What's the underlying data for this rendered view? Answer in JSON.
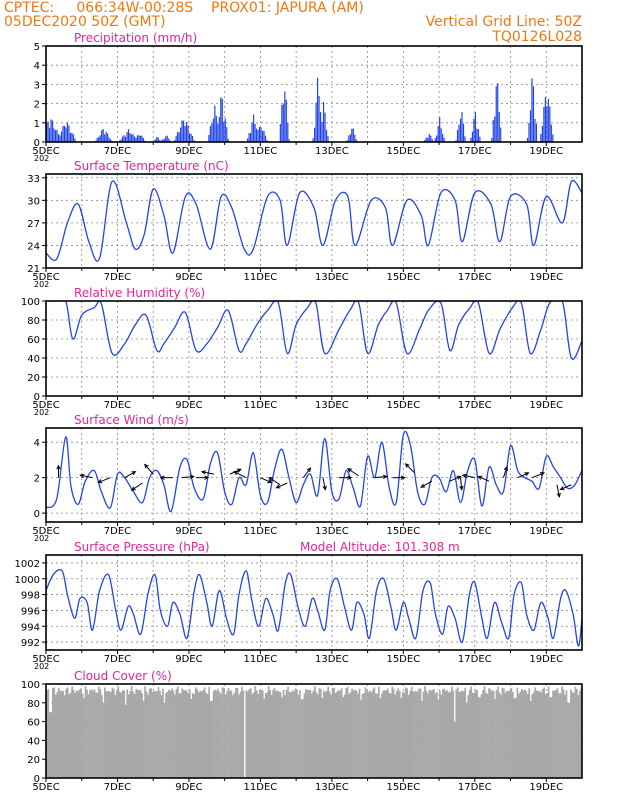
{
  "header": {
    "line1_left": "CPTEC:",
    "line1_coords": "066:34W-00:28S",
    "line1_station": "PROX01: JAPURA (AM)",
    "line2_left": "05DEC2020 50Z (GMT)",
    "line2_right": "Vertical Grid Line: 50Z",
    "line3_right": "TQ0126L028"
  },
  "colors": {
    "header": "#ee7711",
    "panel_title": "#e0249a",
    "series": "#2345e8",
    "cloud": "#a8a8a8",
    "grid": "#888888"
  },
  "x_axis": {
    "tick_labels": [
      "5DEC",
      "7DEC",
      "9DEC",
      "11DEC",
      "13DEC",
      "15DEC",
      "17DEC",
      "19DEC"
    ],
    "tick_days": [
      0,
      2,
      4,
      6,
      8,
      10,
      12,
      14
    ],
    "year_fragment": "202"
  },
  "chart_data": [
    {
      "id": "precip",
      "type": "bar",
      "title": "Precipitation (mm/h)",
      "ylim": [
        0,
        5
      ],
      "yticks": [
        0,
        1,
        2,
        3,
        4,
        5
      ],
      "grid": true,
      "x_range_days": [
        0,
        15
      ],
      "bursts": [
        {
          "day": 0.1,
          "peak": 1.4,
          "width": 0.35
        },
        {
          "day": 0.55,
          "peak": 1.2,
          "width": 0.3
        },
        {
          "day": 1.6,
          "peak": 0.8,
          "width": 0.25
        },
        {
          "day": 2.3,
          "peak": 0.7,
          "width": 0.3
        },
        {
          "day": 2.6,
          "peak": 0.5,
          "width": 0.2
        },
        {
          "day": 3.1,
          "peak": 0.3,
          "width": 0.15
        },
        {
          "day": 3.35,
          "peak": 0.4,
          "width": 0.15
        },
        {
          "day": 3.85,
          "peak": 1.4,
          "width": 0.3
        },
        {
          "day": 4.7,
          "peak": 2.0,
          "width": 0.2
        },
        {
          "day": 4.9,
          "peak": 2.7,
          "width": 0.2
        },
        {
          "day": 5.8,
          "peak": 1.5,
          "width": 0.2
        },
        {
          "day": 6.0,
          "peak": 1.0,
          "width": 0.2
        },
        {
          "day": 6.65,
          "peak": 3.6,
          "width": 0.15
        },
        {
          "day": 7.6,
          "peak": 3.8,
          "width": 0.15
        },
        {
          "day": 7.75,
          "peak": 2.2,
          "width": 0.15
        },
        {
          "day": 8.55,
          "peak": 0.9,
          "width": 0.15
        },
        {
          "day": 10.7,
          "peak": 0.5,
          "width": 0.15
        },
        {
          "day": 11.0,
          "peak": 1.3,
          "width": 0.15
        },
        {
          "day": 11.6,
          "peak": 1.9,
          "width": 0.15
        },
        {
          "day": 12.0,
          "peak": 1.7,
          "width": 0.15
        },
        {
          "day": 12.6,
          "peak": 3.7,
          "width": 0.15
        },
        {
          "day": 13.6,
          "peak": 3.8,
          "width": 0.15
        },
        {
          "day": 14.0,
          "peak": 3.2,
          "width": 0.2
        }
      ]
    },
    {
      "id": "temp",
      "type": "line",
      "title": "Surface Temperature (nC)",
      "ylim": [
        21,
        33.5
      ],
      "yticks": [
        21,
        24,
        27,
        30,
        33
      ],
      "grid": true,
      "x_days": [
        0,
        0.3,
        0.6,
        0.9,
        1.2,
        1.5,
        1.85,
        2.25,
        2.5,
        2.75,
        3.0,
        3.3,
        3.55,
        3.9,
        4.2,
        4.6,
        4.9,
        5.2,
        5.55,
        5.8,
        6.2,
        6.55,
        6.75,
        7.1,
        7.5,
        7.75,
        8.1,
        8.45,
        8.65,
        9.1,
        9.5,
        9.7,
        10.1,
        10.5,
        10.7,
        11.05,
        11.45,
        11.65,
        12.0,
        12.45,
        12.7,
        13.0,
        13.45,
        13.65,
        14.0,
        14.45,
        14.7,
        15.0
      ],
      "values": [
        23.0,
        22.2,
        27.0,
        29.5,
        24.5,
        22.3,
        32.5,
        27.0,
        23.5,
        25.5,
        31.5,
        28.0,
        23.0,
        30.5,
        29.5,
        23.5,
        30.5,
        29.0,
        23.5,
        23.5,
        30.5,
        30.0,
        24.0,
        31.0,
        29.0,
        24.0,
        30.0,
        30.5,
        24.0,
        30.0,
        29.0,
        24.0,
        30.0,
        28.0,
        24.0,
        31.0,
        30.0,
        24.5,
        31.0,
        29.5,
        24.5,
        30.5,
        29.5,
        24.0,
        30.5,
        27.0,
        32.5,
        31.0
      ]
    },
    {
      "id": "rh",
      "type": "line",
      "title": "Relative Humidity (%)",
      "ylim": [
        0,
        100
      ],
      "yticks": [
        0,
        20,
        40,
        60,
        80,
        100
      ],
      "grid": true,
      "x_days": [
        0,
        0.25,
        0.55,
        0.75,
        1.0,
        1.35,
        1.55,
        1.85,
        2.2,
        2.5,
        2.8,
        3.1,
        3.3,
        3.6,
        3.9,
        4.2,
        4.5,
        4.8,
        5.1,
        5.4,
        5.6,
        5.9,
        6.2,
        6.5,
        6.75,
        7.0,
        7.3,
        7.55,
        7.8,
        8.2,
        8.5,
        8.75,
        9.0,
        9.3,
        9.55,
        9.8,
        10.1,
        10.45,
        10.7,
        11.05,
        11.3,
        11.55,
        11.85,
        12.1,
        12.4,
        12.7,
        13.0,
        13.3,
        13.55,
        13.85,
        14.1,
        14.45,
        14.7,
        15.0
      ],
      "values": [
        100,
        100,
        100,
        60,
        85,
        93,
        97,
        45,
        55,
        75,
        85,
        48,
        55,
        72,
        88,
        48,
        55,
        72,
        90,
        48,
        55,
        75,
        90,
        98,
        45,
        75,
        92,
        98,
        45,
        70,
        90,
        98,
        45,
        75,
        90,
        98,
        45,
        70,
        90,
        98,
        48,
        75,
        92,
        98,
        45,
        70,
        90,
        98,
        45,
        70,
        98,
        100,
        40,
        58
      ]
    },
    {
      "id": "wind",
      "type": "line",
      "title": "Surface Wind (m/s)",
      "ylim": [
        -0.5,
        4.8
      ],
      "yticks": [
        0,
        2,
        4
      ],
      "grid": true,
      "x_days": [
        0,
        0.3,
        0.55,
        0.7,
        0.9,
        1.1,
        1.35,
        1.55,
        1.8,
        2.0,
        2.2,
        2.45,
        2.7,
        2.9,
        3.1,
        3.3,
        3.5,
        3.75,
        3.95,
        4.15,
        4.4,
        4.6,
        4.8,
        5.0,
        5.2,
        5.4,
        5.6,
        5.8,
        6.0,
        6.2,
        6.4,
        6.6,
        6.8,
        7.0,
        7.2,
        7.4,
        7.6,
        7.8,
        8.0,
        8.2,
        8.4,
        8.6,
        8.8,
        9.0,
        9.2,
        9.4,
        9.6,
        9.8,
        10.0,
        10.2,
        10.4,
        10.6,
        10.8,
        11.0,
        11.2,
        11.4,
        11.6,
        11.8,
        12.0,
        12.2,
        12.4,
        12.6,
        12.8,
        13.0,
        13.2,
        13.4,
        13.6,
        13.8,
        14.0,
        14.2,
        14.4,
        14.6,
        14.8,
        15.0
      ],
      "values": [
        0.3,
        0.8,
        4.3,
        1.5,
        0.5,
        1.8,
        2.4,
        1.2,
        0.3,
        2.2,
        2.0,
        1.2,
        0.6,
        2.0,
        2.4,
        1.6,
        0.1,
        2.6,
        3.0,
        1.4,
        0.8,
        2.8,
        3.4,
        1.2,
        0.5,
        2.0,
        1.6,
        3.4,
        1.0,
        0.6,
        2.5,
        3.6,
        2.0,
        0.6,
        1.6,
        2.2,
        1.0,
        4.2,
        1.2,
        0.8,
        2.4,
        1.4,
        0.4,
        3.2,
        2.0,
        4.0,
        1.5,
        0.6,
        4.4,
        3.8,
        1.2,
        0.5,
        2.0,
        2.0,
        1.2,
        2.4,
        0.6,
        2.4,
        3.0,
        0.4,
        2.6,
        1.6,
        1.2,
        3.8,
        2.4,
        2.0,
        1.8,
        1.4,
        3.2,
        2.6,
        2.0,
        1.4,
        1.6,
        2.4
      ],
      "arrows": [
        {
          "day": 0.35,
          "y": 2.0,
          "dx": 0.0,
          "dy": 1.0
        },
        {
          "day": 1.3,
          "y": 2.0,
          "dx": -1.0,
          "dy": 0.2
        },
        {
          "day": 1.8,
          "y": 2.0,
          "dx": -1.0,
          "dy": -0.4
        },
        {
          "day": 2.2,
          "y": 2.0,
          "dx": 0.9,
          "dy": 0.5
        },
        {
          "day": 2.7,
          "y": 1.7,
          "dx": -0.9,
          "dy": -0.6
        },
        {
          "day": 3.0,
          "y": 2.2,
          "dx": -0.7,
          "dy": 0.8
        },
        {
          "day": 3.55,
          "y": 2.0,
          "dx": -1.0,
          "dy": 0.0
        },
        {
          "day": 3.8,
          "y": 2.0,
          "dx": 1.0,
          "dy": 0.1
        },
        {
          "day": 4.2,
          "y": 2.0,
          "dx": 1.0,
          "dy": 0.0
        },
        {
          "day": 4.7,
          "y": 2.2,
          "dx": -1.0,
          "dy": 0.2
        },
        {
          "day": 5.15,
          "y": 2.2,
          "dx": 0.9,
          "dy": 0.4
        },
        {
          "day": 5.6,
          "y": 2.0,
          "dx": -1.0,
          "dy": 0.5
        },
        {
          "day": 6.0,
          "y": 2.0,
          "dx": 0.9,
          "dy": -0.4
        },
        {
          "day": 6.55,
          "y": 1.6,
          "dx": -0.9,
          "dy": 0.6
        },
        {
          "day": 6.75,
          "y": 1.7,
          "dx": -0.9,
          "dy": -0.4
        },
        {
          "day": 7.2,
          "y": 2.0,
          "dx": 0.6,
          "dy": 0.8
        },
        {
          "day": 7.75,
          "y": 2.0,
          "dx": 0.2,
          "dy": -1.0
        },
        {
          "day": 8.2,
          "y": 2.0,
          "dx": 1.0,
          "dy": 0.0
        },
        {
          "day": 8.75,
          "y": 2.1,
          "dx": -0.9,
          "dy": 0.6
        },
        {
          "day": 9.2,
          "y": 2.0,
          "dx": 1.0,
          "dy": 0.1
        },
        {
          "day": 9.7,
          "y": 2.0,
          "dx": 1.0,
          "dy": 0.0
        },
        {
          "day": 10.3,
          "y": 2.3,
          "dx": -0.7,
          "dy": 0.7
        },
        {
          "day": 10.8,
          "y": 1.8,
          "dx": -0.9,
          "dy": -0.5
        },
        {
          "day": 11.3,
          "y": 1.8,
          "dx": 0.9,
          "dy": 0.4
        },
        {
          "day": 11.6,
          "y": 2.0,
          "dx": 0.1,
          "dy": -1.0
        },
        {
          "day": 12.0,
          "y": 2.0,
          "dx": -1.0,
          "dy": 0.2
        },
        {
          "day": 12.4,
          "y": 1.8,
          "dx": -0.9,
          "dy": 0.4
        },
        {
          "day": 12.8,
          "y": 2.0,
          "dx": 0.3,
          "dy": 0.9
        },
        {
          "day": 13.2,
          "y": 2.0,
          "dx": 0.9,
          "dy": 0.4
        },
        {
          "day": 13.6,
          "y": 2.0,
          "dx": 1.0,
          "dy": 0.4
        },
        {
          "day": 14.3,
          "y": 1.6,
          "dx": 0.2,
          "dy": -1.0
        },
        {
          "day": 14.7,
          "y": 1.6,
          "dx": -0.9,
          "dy": -0.4
        }
      ]
    },
    {
      "id": "pressure",
      "type": "line",
      "title": "Surface Pressure (hPa)",
      "annotation": "Model Altitude: 101.308 m",
      "ylim": [
        991,
        1003
      ],
      "yticks": [
        992,
        994,
        996,
        998,
        1000,
        1002
      ],
      "grid": true,
      "x_days": [
        0,
        0.2,
        0.45,
        0.6,
        0.8,
        0.95,
        1.15,
        1.3,
        1.5,
        1.75,
        1.95,
        2.1,
        2.3,
        2.45,
        2.65,
        2.85,
        3.05,
        3.2,
        3.4,
        3.55,
        3.75,
        3.95,
        4.15,
        4.3,
        4.5,
        4.65,
        4.85,
        5.05,
        5.25,
        5.4,
        5.6,
        5.75,
        5.95,
        6.15,
        6.35,
        6.5,
        6.7,
        6.85,
        7.05,
        7.25,
        7.45,
        7.6,
        7.8,
        7.95,
        8.15,
        8.35,
        8.55,
        8.7,
        8.9,
        9.05,
        9.25,
        9.45,
        9.65,
        9.8,
        10.0,
        10.15,
        10.35,
        10.55,
        10.75,
        10.9,
        11.1,
        11.25,
        11.45,
        11.65,
        11.85,
        12.0,
        12.2,
        12.35,
        12.55,
        12.75,
        12.95,
        13.1,
        13.3,
        13.45,
        13.65,
        13.85,
        14.05,
        14.2,
        14.4,
        14.55,
        14.75,
        14.9,
        15.0
      ],
      "values": [
        998.5,
        1000.5,
        1001.0,
        998.0,
        995.0,
        997.5,
        997.0,
        993.5,
        998.5,
        1000.5,
        996.0,
        993.5,
        996.5,
        995.5,
        993.0,
        998.0,
        1000.5,
        996.0,
        994.0,
        997.0,
        995.5,
        992.5,
        998.5,
        1000.5,
        997.0,
        994.0,
        998.5,
        995.0,
        993.0,
        998.0,
        1001.0,
        997.5,
        994.0,
        997.5,
        995.5,
        993.5,
        999.5,
        1000.5,
        996.5,
        994.0,
        997.5,
        996.0,
        993.5,
        998.5,
        1000.0,
        996.5,
        993.5,
        997.0,
        995.5,
        992.5,
        998.5,
        1000.0,
        996.5,
        993.5,
        997.0,
        995.0,
        992.5,
        998.5,
        999.5,
        995.5,
        993.0,
        996.5,
        995.0,
        992.0,
        998.0,
        999.5,
        995.0,
        992.5,
        997.0,
        994.5,
        992.5,
        998.0,
        999.5,
        995.5,
        993.5,
        997.0,
        995.0,
        992.5,
        997.5,
        998.5,
        995.5,
        991.5,
        995.0
      ]
    },
    {
      "id": "cloud",
      "type": "bar",
      "title": "Cloud Cover (%)",
      "ylim": [
        0,
        100
      ],
      "yticks": [
        0,
        20,
        40,
        60,
        80,
        100
      ],
      "grid": true,
      "base_level": 93,
      "dips": [
        {
          "day": 0.1,
          "value": 70
        },
        {
          "day": 0.5,
          "value": 88
        },
        {
          "day": 1.05,
          "value": 85
        },
        {
          "day": 1.6,
          "value": 80
        },
        {
          "day": 2.2,
          "value": 78
        },
        {
          "day": 2.7,
          "value": 82
        },
        {
          "day": 3.3,
          "value": 80
        },
        {
          "day": 4.05,
          "value": 84
        },
        {
          "day": 4.6,
          "value": 82
        },
        {
          "day": 5.2,
          "value": 88
        },
        {
          "day": 5.55,
          "value": 0
        },
        {
          "day": 6.1,
          "value": 84
        },
        {
          "day": 6.6,
          "value": 86
        },
        {
          "day": 7.15,
          "value": 84
        },
        {
          "day": 7.7,
          "value": 85
        },
        {
          "day": 8.3,
          "value": 86
        },
        {
          "day": 8.8,
          "value": 83
        },
        {
          "day": 9.35,
          "value": 85
        },
        {
          "day": 9.9,
          "value": 85
        },
        {
          "day": 10.5,
          "value": 82
        },
        {
          "day": 10.95,
          "value": 83
        },
        {
          "day": 11.4,
          "value": 60
        },
        {
          "day": 11.75,
          "value": 80
        },
        {
          "day": 12.1,
          "value": 86
        },
        {
          "day": 12.55,
          "value": 84
        },
        {
          "day": 13.1,
          "value": 85
        },
        {
          "day": 13.55,
          "value": 82
        },
        {
          "day": 14.1,
          "value": 86
        },
        {
          "day": 14.6,
          "value": 80
        }
      ]
    }
  ]
}
